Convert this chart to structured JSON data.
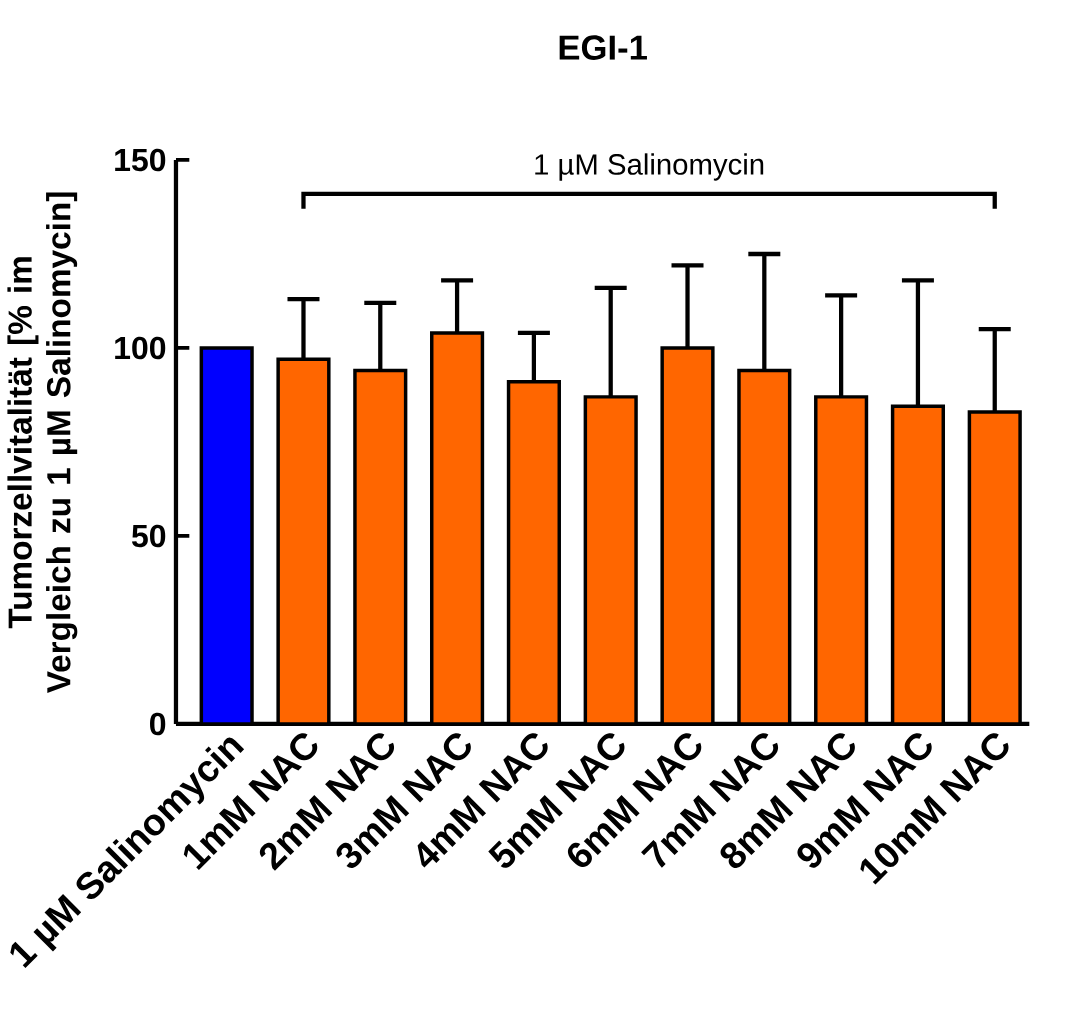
{
  "chart_data": {
    "type": "bar",
    "title": "EGI-1",
    "ylabel": "Tumorzellvitalität [% im Vergleich zu 1 µM Salinomycin]",
    "categories": [
      "1 µM Salinomycin",
      "1mM NAC",
      "2mM NAC",
      "3mM NAC",
      "4mM NAC",
      "5mM NAC",
      "6mM NAC",
      "7mM NAC",
      "8mM NAC",
      "9mM NAC",
      "10mM NAC"
    ],
    "values": [
      100,
      97,
      94,
      104,
      91,
      87,
      100,
      94,
      87,
      84.5,
      83
    ],
    "errors": [
      null,
      [
        97,
        113
      ],
      [
        94,
        112
      ],
      [
        104,
        118
      ],
      [
        91,
        104
      ],
      [
        87,
        116
      ],
      [
        100,
        122
      ],
      [
        94,
        125
      ],
      [
        87,
        114
      ],
      [
        84.5,
        118
      ],
      [
        83,
        105
      ]
    ],
    "colors": [
      "#0000ff",
      "#ff6600",
      "#ff6600",
      "#ff6600",
      "#ff6600",
      "#ff6600",
      "#ff6600",
      "#ff6600",
      "#ff6600",
      "#ff6600",
      "#ff6600"
    ],
    "ylim": [
      0,
      150
    ],
    "yticks": [
      0,
      50,
      100,
      150
    ],
    "grid": false,
    "annotations": [
      "1 µM Salinomycin"
    ]
  }
}
